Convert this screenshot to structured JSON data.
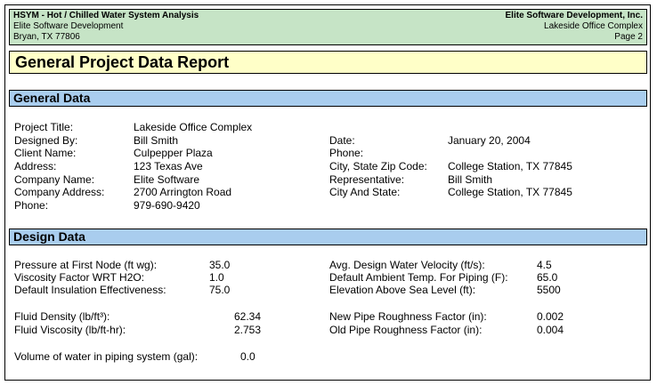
{
  "header": {
    "app_name": "HSYM - Hot / Chilled Water System Analysis",
    "company_line1": "Elite Software Development",
    "company_line2": "Bryan, TX  77806",
    "vendor": "Elite Software Development, Inc.",
    "project": "Lakeside Office Complex",
    "page": "Page 2"
  },
  "report_title": "General Project Data Report",
  "general": {
    "heading": "General Data",
    "left": [
      {
        "label": "Project Title:",
        "value": "Lakeside Office Complex"
      },
      {
        "label": "Designed By:",
        "value": "Bill Smith"
      },
      {
        "label": "Client Name:",
        "value": "Culpepper Plaza"
      },
      {
        "label": "Address:",
        "value": "123 Texas Ave"
      },
      {
        "label": "Company Name:",
        "value": "Elite Software"
      },
      {
        "label": "Company Address:",
        "value": "2700 Arrington Road"
      },
      {
        "label": "Phone:",
        "value": "979-690-9420"
      }
    ],
    "right": [
      {
        "label": "Date:",
        "value": "January 20, 2004"
      },
      {
        "label": "Phone:",
        "value": ""
      },
      {
        "label": "City, State Zip Code:",
        "value": "College Station, TX 77845"
      },
      {
        "label": "Representative:",
        "value": "Bill Smith"
      },
      {
        "label": "City And State:",
        "value": "College Station, TX 77845"
      }
    ]
  },
  "design": {
    "heading": "Design Data",
    "left": [
      {
        "label": "Pressure at First Node (ft wg):",
        "value": "35.0"
      },
      {
        "label": "Viscosity Factor WRT H2O:",
        "value": "1.0"
      },
      {
        "label": "Default Insulation Effectiveness:",
        "value": "75.0"
      },
      {
        "label": "Fluid Density (lb/ft³):",
        "value": "62.34"
      },
      {
        "label": "Fluid Viscosity (lb/ft-hr):",
        "value": "2.753"
      }
    ],
    "right": [
      {
        "label": "Avg. Design Water Velocity (ft/s):",
        "value": "4.5"
      },
      {
        "label": "Default Ambient Temp. For Piping (F):",
        "value": "65.0"
      },
      {
        "label": "Elevation Above Sea Level (ft):",
        "value": "5500"
      },
      {
        "label": "New Pipe Roughness Factor (in):",
        "value": "0.002"
      },
      {
        "label": "Old Pipe Roughness Factor (in):",
        "value": "0.004"
      }
    ],
    "volume": {
      "label": "Volume of water in piping system (gal):",
      "value": "0.0"
    }
  }
}
